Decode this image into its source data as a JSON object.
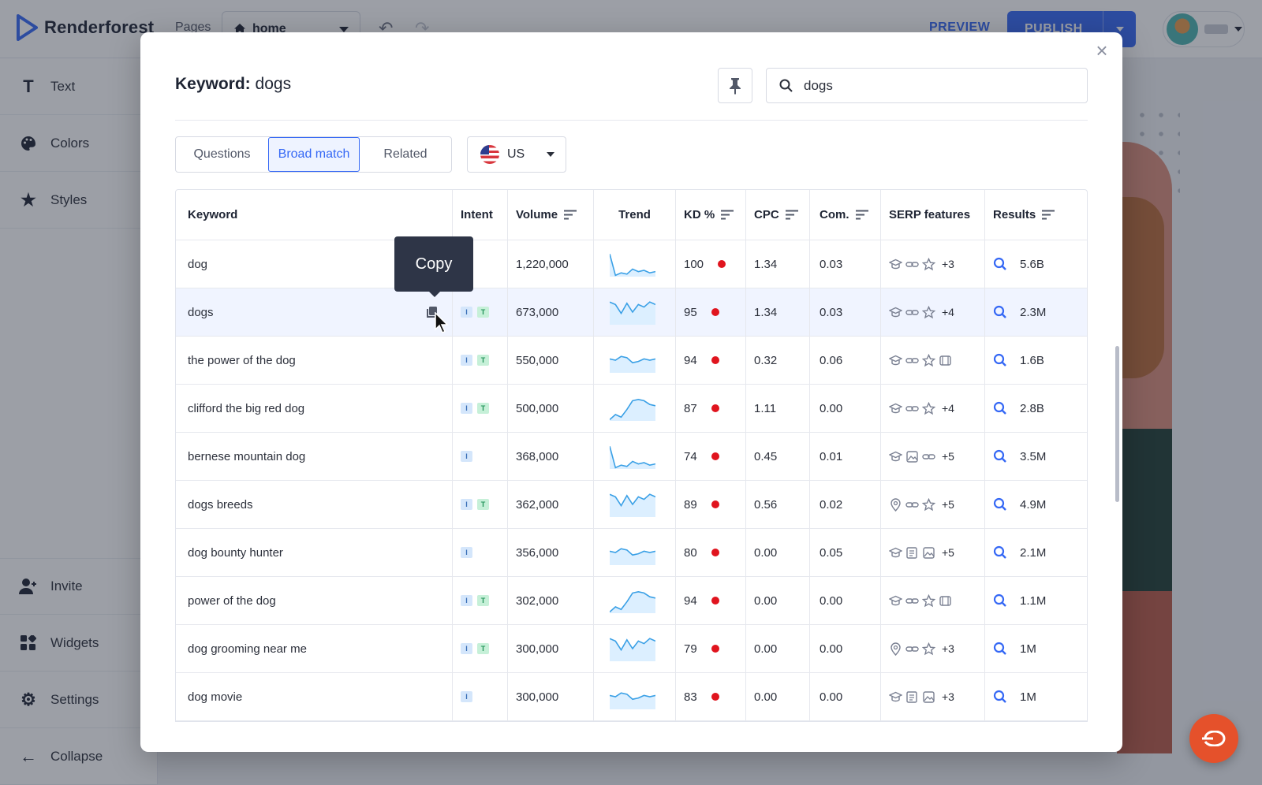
{
  "app": {
    "brand": "Renderforest",
    "pages_label": "Pages",
    "current_page": "home",
    "preview": "PREVIEW",
    "publish": "PUBLISH"
  },
  "sidebar": {
    "items": [
      {
        "label": "Text",
        "icon": "text-icon"
      },
      {
        "label": "Colors",
        "icon": "palette-icon"
      },
      {
        "label": "Styles",
        "icon": "star-icon"
      }
    ],
    "bottom": [
      {
        "label": "Invite",
        "icon": "add-user-icon"
      },
      {
        "label": "Widgets",
        "icon": "widgets-icon"
      },
      {
        "label": "Settings",
        "icon": "gear-icon"
      },
      {
        "label": "Collapse",
        "icon": "arrow-left-icon"
      }
    ]
  },
  "modal": {
    "title_label": "Keyword:",
    "title_value": "dogs",
    "search_value": "dogs",
    "tabs": [
      "Questions",
      "Broad match",
      "Related"
    ],
    "active_tab": "Broad match",
    "country": "US",
    "tooltip": "Copy"
  },
  "table": {
    "columns": [
      "Keyword",
      "Intent",
      "Volume",
      "Trend",
      "KD %",
      "CPC",
      "Com.",
      "SERP features",
      "Results"
    ],
    "rows": [
      {
        "keyword": "dog",
        "intent": [
          "T"
        ],
        "volume": "1,220,000",
        "trend": "decline",
        "kd": "100",
        "cpc": "1.34",
        "com": "0.03",
        "serp": [
          "graduation-cap-icon",
          "link-icon",
          "star-icon"
        ],
        "serp_more": "+3",
        "results": "5.6B"
      },
      {
        "keyword": "dogs",
        "intent": [
          "I",
          "T"
        ],
        "volume": "673,000",
        "trend": "spike",
        "kd": "95",
        "cpc": "1.34",
        "com": "0.03",
        "serp": [
          "graduation-cap-icon",
          "link-icon",
          "star-icon"
        ],
        "serp_more": "+4",
        "results": "2.3M"
      },
      {
        "keyword": "the power of the dog",
        "intent": [
          "I",
          "T"
        ],
        "volume": "550,000",
        "trend": "wave",
        "kd": "94",
        "cpc": "0.32",
        "com": "0.06",
        "serp": [
          "graduation-cap-icon",
          "link-icon",
          "star-icon",
          "video-icon"
        ],
        "serp_more": "",
        "results": "1.6B"
      },
      {
        "keyword": "clifford the big red dog",
        "intent": [
          "I",
          "T"
        ],
        "volume": "500,000",
        "trend": "hill",
        "kd": "87",
        "cpc": "1.11",
        "com": "0.00",
        "serp": [
          "graduation-cap-icon",
          "link-icon",
          "star-icon"
        ],
        "serp_more": "+4",
        "results": "2.8B"
      },
      {
        "keyword": "bernese mountain dog",
        "intent": [
          "I"
        ],
        "volume": "368,000",
        "trend": "decline",
        "kd": "74",
        "cpc": "0.45",
        "com": "0.01",
        "serp": [
          "graduation-cap-icon",
          "image-icon",
          "link-icon"
        ],
        "serp_more": "+5",
        "results": "3.5M"
      },
      {
        "keyword": "dogs breeds",
        "intent": [
          "I",
          "T"
        ],
        "volume": "362,000",
        "trend": "spike",
        "kd": "89",
        "cpc": "0.56",
        "com": "0.02",
        "serp": [
          "location-icon",
          "link-icon",
          "star-icon"
        ],
        "serp_more": "+5",
        "results": "4.9M"
      },
      {
        "keyword": "dog bounty hunter",
        "intent": [
          "I"
        ],
        "volume": "356,000",
        "trend": "wave",
        "kd": "80",
        "cpc": "0.00",
        "com": "0.05",
        "serp": [
          "graduation-cap-icon",
          "news-icon",
          "image-icon"
        ],
        "serp_more": "+5",
        "results": "2.1M"
      },
      {
        "keyword": "power of the dog",
        "intent": [
          "I",
          "T"
        ],
        "volume": "302,000",
        "trend": "hill",
        "kd": "94",
        "cpc": "0.00",
        "com": "0.00",
        "serp": [
          "graduation-cap-icon",
          "link-icon",
          "star-icon",
          "video-icon"
        ],
        "serp_more": "",
        "results": "1.1M"
      },
      {
        "keyword": "dog grooming near me",
        "intent": [
          "I",
          "T"
        ],
        "volume": "300,000",
        "trend": "spike",
        "kd": "79",
        "cpc": "0.00",
        "com": "0.00",
        "serp": [
          "location-icon",
          "link-icon",
          "star-icon"
        ],
        "serp_more": "+3",
        "results": "1M"
      },
      {
        "keyword": "dog movie",
        "intent": [
          "I"
        ],
        "volume": "300,000",
        "trend": "wave",
        "kd": "83",
        "cpc": "0.00",
        "com": "0.00",
        "serp": [
          "graduation-cap-icon",
          "news-icon",
          "image-icon"
        ],
        "serp_more": "+3",
        "results": "1M"
      }
    ]
  },
  "colors": {
    "accent": "#3568f5",
    "kd_dot": "#e0141e",
    "intent_i": "#d4e6fb",
    "intent_t": "#c6f0d8",
    "trend_line": "#3aa0e6",
    "trend_fill": "#dcefff"
  }
}
